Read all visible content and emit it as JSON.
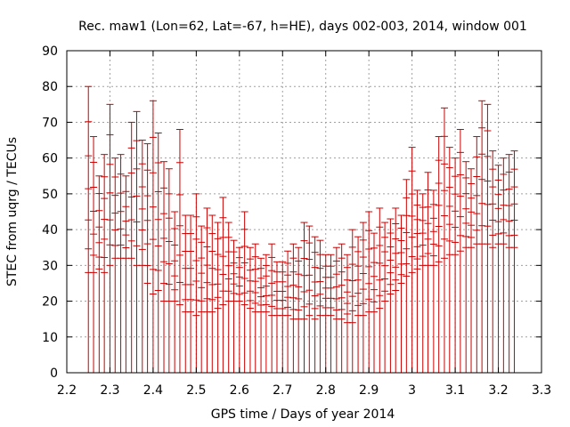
{
  "chart_data": {
    "type": "scatter",
    "title": "Rec. maw1 (Lon=62, Lat=-67, h=HE), days 002-003, 2014, window 001",
    "xlabel": "GPS time / Days of year 2014",
    "ylabel": "STEC from uqrg / TECUs",
    "xlim": [
      2.2,
      3.3
    ],
    "ylim": [
      0,
      90
    ],
    "x_ticks": [
      "2.2",
      "2.3",
      "2.4",
      "2.5",
      "2.6",
      "2.7",
      "2.8",
      "2.9",
      "3",
      "3.1",
      "3.2",
      "3.3"
    ],
    "y_ticks": [
      "0",
      "10",
      "20",
      "30",
      "40",
      "50",
      "60",
      "70",
      "80",
      "90"
    ],
    "grid": true,
    "series_color": "#cc0000",
    "style": "impulses from 0 with horizontal tick marks at each STEC value",
    "series": [
      {
        "name": "STEC",
        "x": [
          2.25,
          2.262,
          2.275,
          2.287,
          2.3,
          2.312,
          2.325,
          2.337,
          2.35,
          2.362,
          2.375,
          2.387,
          2.4,
          2.412,
          2.425,
          2.437,
          2.45,
          2.462,
          2.475,
          2.487,
          2.5,
          2.512,
          2.525,
          2.537,
          2.55,
          2.562,
          2.575,
          2.587,
          2.6,
          2.612,
          2.625,
          2.637,
          2.65,
          2.662,
          2.675,
          2.687,
          2.7,
          2.712,
          2.725,
          2.737,
          2.75,
          2.762,
          2.775,
          2.787,
          2.8,
          2.812,
          2.825,
          2.837,
          2.85,
          2.862,
          2.875,
          2.887,
          2.9,
          2.912,
          2.925,
          2.937,
          2.95,
          2.962,
          2.975,
          2.987,
          3.0,
          3.012,
          3.025,
          3.037,
          3.05,
          3.062,
          3.075,
          3.087,
          3.1,
          3.112,
          3.125,
          3.137,
          3.15,
          3.162,
          3.175,
          3.187,
          3.2,
          3.212,
          3.225,
          3.237
        ],
        "max": [
          80,
          66,
          55,
          61,
          75,
          60,
          61,
          55,
          70,
          73,
          65,
          64,
          76,
          67,
          59,
          57,
          45,
          68,
          44,
          44,
          50,
          41,
          46,
          44,
          42,
          49,
          42,
          37,
          35,
          45,
          35,
          36,
          32,
          33,
          36,
          31,
          31,
          34,
          36,
          35,
          42,
          41,
          38,
          37,
          33,
          33,
          35,
          36,
          33,
          40,
          38,
          42,
          45,
          39,
          46,
          42,
          43,
          46,
          44,
          54,
          63,
          51,
          50,
          56,
          51,
          66,
          74,
          63,
          60,
          68,
          59,
          57,
          66,
          76,
          75,
          62,
          58,
          60,
          61,
          62
        ],
        "min": [
          28,
          28,
          29,
          28,
          30,
          32,
          32,
          32,
          32,
          30,
          30,
          25,
          22,
          23,
          20,
          20,
          20,
          19,
          17,
          17,
          16,
          17,
          17,
          17,
          18,
          19,
          20,
          20,
          20,
          19,
          18,
          17,
          17,
          17,
          16,
          16,
          16,
          16,
          15,
          15,
          15,
          16,
          15,
          16,
          16,
          16,
          15,
          15,
          14,
          14,
          16,
          16,
          17,
          17,
          18,
          20,
          22,
          23,
          25,
          27,
          28,
          29,
          30,
          30,
          30,
          31,
          32,
          33,
          33,
          34,
          35,
          35,
          36,
          36,
          36,
          35,
          36,
          36,
          35,
          35
        ]
      }
    ]
  }
}
